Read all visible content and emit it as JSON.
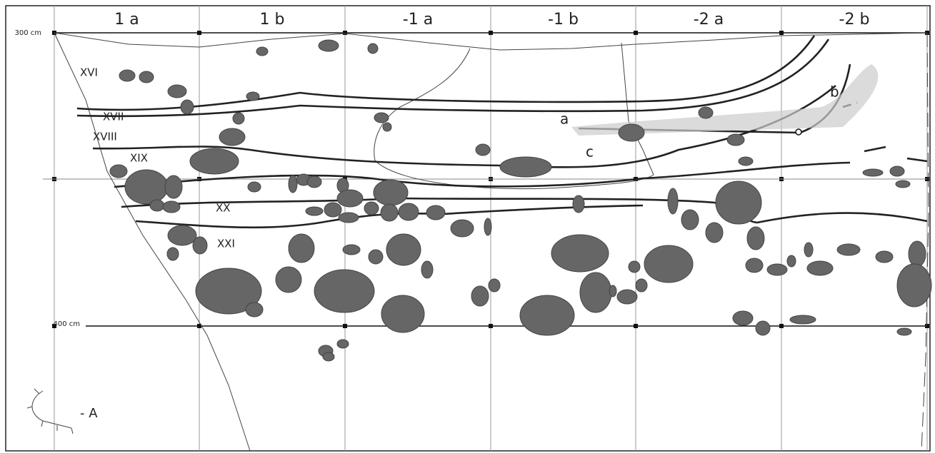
{
  "columns": [
    "1 a",
    "1 b",
    "-1 a",
    "-1 b",
    "-2 a",
    "-2 b"
  ],
  "depths": [
    "300 cm",
    "400 cm"
  ],
  "layers": [
    "XVI",
    "XVII",
    "XVIII",
    "XIX",
    "XX",
    "XXI"
  ],
  "features": [
    "a",
    "b",
    "c"
  ],
  "legend": "- A"
}
